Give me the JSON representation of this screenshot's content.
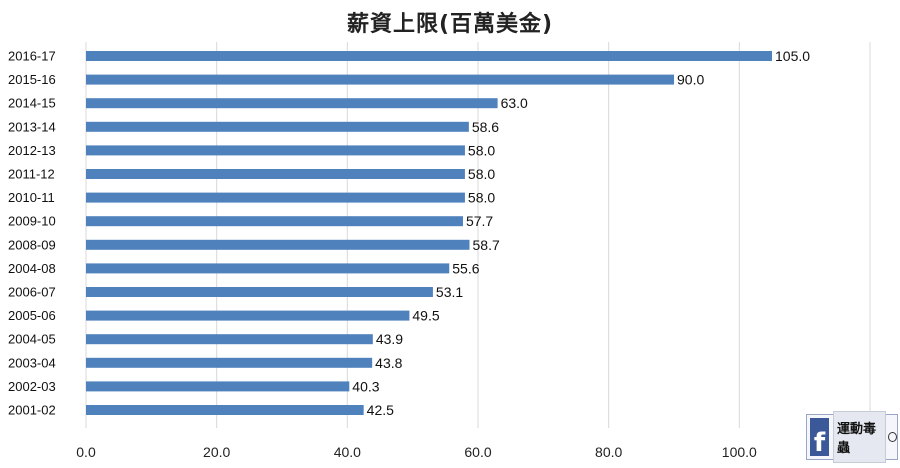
{
  "chart_data": {
    "type": "bar",
    "orientation": "horizontal",
    "title": "薪資上限(百萬美金)",
    "categories": [
      "2016-17",
      "2015-16",
      "2014-15",
      "2013-14",
      "2012-13",
      "2011-12",
      "2010-11",
      "2009-10",
      "2008-09",
      "2004-08",
      "2006-07",
      "2005-06",
      "2004-05",
      "2003-04",
      "2002-03",
      "2001-02"
    ],
    "values": [
      105.0,
      90.0,
      63.0,
      58.6,
      58.0,
      58.0,
      58.0,
      57.7,
      58.7,
      55.6,
      53.1,
      49.5,
      43.9,
      43.8,
      40.3,
      42.5
    ],
    "value_labels": [
      "105.0",
      "90.0",
      "63.0",
      "58.6",
      "58.0",
      "58.0",
      "58.0",
      "57.7",
      "58.7",
      "55.6",
      "53.1",
      "49.5",
      "43.9",
      "43.8",
      "40.3",
      "42.5"
    ],
    "xlim": [
      0,
      120
    ],
    "x_ticks": [
      "0.0",
      "20.0",
      "40.0",
      "60.0",
      "80.0",
      "100.0"
    ],
    "x_tick_values": [
      0,
      20,
      40,
      60,
      80,
      100
    ],
    "grid": "vertical",
    "bar_color": "#4f81bd",
    "grid_color": "#d9d9d9"
  },
  "watermark": {
    "icon": "facebook-logo",
    "text": "運動毒蟲"
  }
}
